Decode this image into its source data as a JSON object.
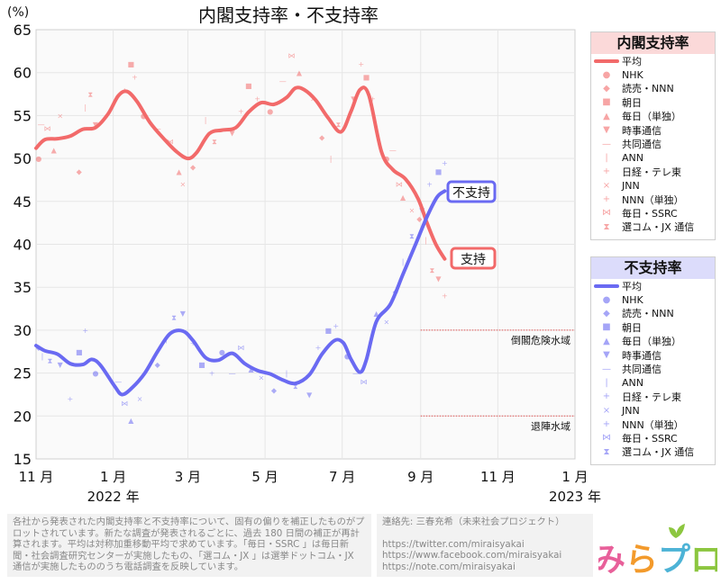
{
  "chart_data": {
    "type": "line",
    "title": "内閣支持率・不支持率",
    "ylabel": "(%)",
    "ylim": [
      15,
      65
    ],
    "yticks": [
      15,
      20,
      25,
      30,
      35,
      40,
      45,
      50,
      55,
      60,
      65
    ],
    "xlim": [
      "2021-11-01",
      "2023-01-01"
    ],
    "xticks": [
      {
        "date": "2021-11-01",
        "label": "11 月"
      },
      {
        "date": "2022-01-01",
        "label": "1 月"
      },
      {
        "date": "2022-03-01",
        "label": "3 月"
      },
      {
        "date": "2022-05-01",
        "label": "5 月"
      },
      {
        "date": "2022-07-01",
        "label": "7 月"
      },
      {
        "date": "2022-09-01",
        "label": "9 月"
      },
      {
        "date": "2022-11-01",
        "label": "11 月"
      },
      {
        "date": "2023-01-01",
        "label": "1 月"
      }
    ],
    "year_labels": [
      {
        "date": "2022-01-01",
        "label": "2022 年"
      },
      {
        "date": "2023-01-01",
        "label": "2023 年"
      }
    ],
    "grid": true,
    "thresholds": [
      {
        "y": 30,
        "label": "倒閣危険水域",
        "from": "2022-09-01"
      },
      {
        "y": 20,
        "label": "退陣水域",
        "from": "2022-09-01"
      }
    ],
    "series": [
      {
        "name": "支持",
        "color": "#f26a6a",
        "smooth": [
          [
            "2021-11-01",
            51.2
          ],
          [
            "2021-11-08",
            52.2
          ],
          [
            "2021-11-18",
            52.3
          ],
          [
            "2021-11-28",
            52.6
          ],
          [
            "2021-12-08",
            53.4
          ],
          [
            "2021-12-18",
            53.6
          ],
          [
            "2021-12-28",
            55.2
          ],
          [
            "2022-01-05",
            57.3
          ],
          [
            "2022-01-12",
            57.8
          ],
          [
            "2022-01-20",
            56.6
          ],
          [
            "2022-01-30",
            54.2
          ],
          [
            "2022-02-10",
            52.3
          ],
          [
            "2022-02-20",
            50.8
          ],
          [
            "2022-03-01",
            50.0
          ],
          [
            "2022-03-08",
            50.7
          ],
          [
            "2022-03-18",
            52.9
          ],
          [
            "2022-03-28",
            53.3
          ],
          [
            "2022-04-08",
            53.6
          ],
          [
            "2022-04-18",
            55.4
          ],
          [
            "2022-04-28",
            56.5
          ],
          [
            "2022-05-08",
            56.3
          ],
          [
            "2022-05-18",
            57.1
          ],
          [
            "2022-05-25",
            58.2
          ],
          [
            "2022-06-01",
            58.0
          ],
          [
            "2022-06-10",
            56.8
          ],
          [
            "2022-06-20",
            54.7
          ],
          [
            "2022-06-30",
            53.1
          ],
          [
            "2022-07-08",
            55.5
          ],
          [
            "2022-07-15",
            58.0
          ],
          [
            "2022-07-22",
            57.4
          ],
          [
            "2022-08-01",
            50.8
          ],
          [
            "2022-08-10",
            48.7
          ],
          [
            "2022-08-20",
            47.6
          ],
          [
            "2022-08-30",
            45.3
          ],
          [
            "2022-09-06",
            42.5
          ],
          [
            "2022-09-13",
            40.0
          ],
          [
            "2022-09-20",
            38.3
          ]
        ],
        "polls": [
          [
            "2021-11-03",
            50.0
          ],
          [
            "2021-11-05",
            54.0
          ],
          [
            "2021-11-10",
            53.5
          ],
          [
            "2021-11-15",
            51.0
          ],
          [
            "2021-11-20",
            55.0
          ],
          [
            "2021-12-05",
            48.5
          ],
          [
            "2021-12-10",
            56.0
          ],
          [
            "2021-12-14",
            57.5
          ],
          [
            "2021-12-18",
            54.0
          ],
          [
            "2022-01-10",
            58.0
          ],
          [
            "2022-01-15",
            61.0
          ],
          [
            "2022-01-18",
            59.5
          ],
          [
            "2022-01-25",
            55.0
          ],
          [
            "2022-02-05",
            53.5
          ],
          [
            "2022-02-15",
            52.0
          ],
          [
            "2022-02-22",
            48.5
          ],
          [
            "2022-02-25",
            47.0
          ],
          [
            "2022-03-05",
            49.0
          ],
          [
            "2022-03-15",
            54.5
          ],
          [
            "2022-03-22",
            52.0
          ],
          [
            "2022-04-05",
            53.0
          ],
          [
            "2022-04-12",
            55.5
          ],
          [
            "2022-04-18",
            58.5
          ],
          [
            "2022-04-25",
            57.0
          ],
          [
            "2022-05-05",
            55.5
          ],
          [
            "2022-05-15",
            59.0
          ],
          [
            "2022-05-22",
            62.0
          ],
          [
            "2022-05-28",
            60.0
          ],
          [
            "2022-06-08",
            57.0
          ],
          [
            "2022-06-15",
            52.5
          ],
          [
            "2022-06-22",
            50.0
          ],
          [
            "2022-06-28",
            54.0
          ],
          [
            "2022-07-10",
            57.0
          ],
          [
            "2022-07-16",
            61.0
          ],
          [
            "2022-07-20",
            59.5
          ],
          [
            "2022-07-25",
            57.0
          ],
          [
            "2022-08-05",
            50.0
          ],
          [
            "2022-08-10",
            51.0
          ],
          [
            "2022-08-15",
            47.0
          ],
          [
            "2022-08-18",
            45.5
          ],
          [
            "2022-08-25",
            44.0
          ],
          [
            "2022-08-31",
            43.0
          ],
          [
            "2022-09-05",
            40.5
          ],
          [
            "2022-09-10",
            37.0
          ],
          [
            "2022-09-15",
            36.0
          ],
          [
            "2022-09-20",
            34.0
          ]
        ]
      },
      {
        "name": "不支持",
        "color": "#6a6af2",
        "smooth": [
          [
            "2021-11-01",
            28.2
          ],
          [
            "2021-11-08",
            27.6
          ],
          [
            "2021-11-18",
            27.2
          ],
          [
            "2021-11-28",
            26.1
          ],
          [
            "2021-12-08",
            26.0
          ],
          [
            "2021-12-15",
            26.6
          ],
          [
            "2021-12-22",
            25.9
          ],
          [
            "2022-01-02",
            23.5
          ],
          [
            "2022-01-08",
            22.5
          ],
          [
            "2022-01-16",
            23.3
          ],
          [
            "2022-01-26",
            25.0
          ],
          [
            "2022-02-05",
            27.5
          ],
          [
            "2022-02-15",
            29.6
          ],
          [
            "2022-02-25",
            29.9
          ],
          [
            "2022-03-05",
            28.8
          ],
          [
            "2022-03-15",
            26.8
          ],
          [
            "2022-03-25",
            26.5
          ],
          [
            "2022-04-05",
            27.3
          ],
          [
            "2022-04-15",
            26.1
          ],
          [
            "2022-04-25",
            25.3
          ],
          [
            "2022-05-05",
            24.9
          ],
          [
            "2022-05-15",
            24.2
          ],
          [
            "2022-05-25",
            23.8
          ],
          [
            "2022-06-05",
            24.8
          ],
          [
            "2022-06-15",
            27.2
          ],
          [
            "2022-06-25",
            28.8
          ],
          [
            "2022-07-02",
            28.5
          ],
          [
            "2022-07-08",
            26.6
          ],
          [
            "2022-07-15",
            25.1
          ],
          [
            "2022-07-20",
            26.5
          ],
          [
            "2022-07-28",
            31.0
          ],
          [
            "2022-08-08",
            33.0
          ],
          [
            "2022-08-18",
            36.5
          ],
          [
            "2022-08-28",
            40.0
          ],
          [
            "2022-09-06",
            43.2
          ],
          [
            "2022-09-14",
            45.5
          ],
          [
            "2022-09-20",
            46.2
          ]
        ],
        "polls": [
          [
            "2021-11-03",
            28.0
          ],
          [
            "2021-11-06",
            27.0
          ],
          [
            "2021-11-12",
            26.5
          ],
          [
            "2021-11-20",
            26.0
          ],
          [
            "2021-11-28",
            22.0
          ],
          [
            "2021-12-05",
            27.5
          ],
          [
            "2021-12-10",
            30.0
          ],
          [
            "2021-12-18",
            25.0
          ],
          [
            "2022-01-05",
            24.0
          ],
          [
            "2022-01-10",
            21.5
          ],
          [
            "2022-01-15",
            19.5
          ],
          [
            "2022-01-22",
            22.0
          ],
          [
            "2022-02-05",
            26.0
          ],
          [
            "2022-02-12",
            29.0
          ],
          [
            "2022-02-18",
            31.5
          ],
          [
            "2022-02-25",
            32.0
          ],
          [
            "2022-03-05",
            28.5
          ],
          [
            "2022-03-12",
            26.0
          ],
          [
            "2022-03-20",
            25.0
          ],
          [
            "2022-03-28",
            27.5
          ],
          [
            "2022-04-05",
            25.0
          ],
          [
            "2022-04-12",
            28.0
          ],
          [
            "2022-04-20",
            25.5
          ],
          [
            "2022-04-28",
            24.5
          ],
          [
            "2022-05-08",
            23.0
          ],
          [
            "2022-05-18",
            25.0
          ],
          [
            "2022-05-25",
            23.5
          ],
          [
            "2022-06-05",
            22.5
          ],
          [
            "2022-06-12",
            28.0
          ],
          [
            "2022-06-20",
            30.0
          ],
          [
            "2022-06-26",
            30.5
          ],
          [
            "2022-07-05",
            27.0
          ],
          [
            "2022-07-12",
            25.0
          ],
          [
            "2022-07-18",
            24.0
          ],
          [
            "2022-07-28",
            32.0
          ],
          [
            "2022-08-05",
            31.0
          ],
          [
            "2022-08-12",
            34.5
          ],
          [
            "2022-08-18",
            38.0
          ],
          [
            "2022-08-25",
            41.0
          ],
          [
            "2022-09-02",
            44.0
          ],
          [
            "2022-09-08",
            47.0
          ],
          [
            "2022-09-15",
            48.5
          ],
          [
            "2022-09-20",
            49.5
          ]
        ]
      }
    ],
    "end_labels": {
      "support": "支持",
      "disapproval": "不支持"
    },
    "legends": [
      {
        "title": "内閣支持率",
        "color": "#f26a6a",
        "head_bg": "#fbd9d9",
        "items": [
          "平均",
          "NHK",
          "読売・NNN",
          "朝日",
          "毎日（単独）",
          "時事通信",
          "共同通信",
          "ANN",
          "日経・テレ東",
          "JNN",
          "NNN（単独）",
          "毎日・SSRC",
          "選コム・JX 通信"
        ]
      },
      {
        "title": "不支持率",
        "color": "#6a6af2",
        "head_bg": "#dcdcfb",
        "items": [
          "平均",
          "NHK",
          "読売・NNN",
          "朝日",
          "毎日（単独）",
          "時事通信",
          "共同通信",
          "ANN",
          "日経・テレ東",
          "JNN",
          "NNN（単独）",
          "毎日・SSRC",
          "選コム・JX 通信"
        ]
      }
    ],
    "legend_symbols": [
      "●",
      "◆",
      "■",
      "▲",
      "▼",
      "—",
      "|",
      "+",
      "×",
      "+",
      "⋈",
      "⧗"
    ]
  },
  "footnote": "各社から発表された内閣支持率と不支持率について、固有の偏りを補正したものがプロットされています。新たな調査が発表されるごとに、過去 180 日間の補正が再計算されます。平均は対称加重移動平均で求めています。「毎日・SSRC 」は毎日新聞・社会調査研究センターが実施したもの、「選コム・JX 」は選挙ドットコム・JX 通信が実施したもののうち電話調査を反映しています。",
  "contact": {
    "title": "連絡先: 三春充希（未来社会プロジェクト）",
    "links": [
      "https://twitter.com/miraisyakai",
      "https://www.facebook.com/miraisyakai",
      "https://note.com/miraisyakai"
    ]
  },
  "logo": {
    "text": "みらプロ",
    "colors": [
      "#e8609a",
      "#f39a2b",
      "#4db3d6",
      "#8cc63f"
    ]
  }
}
